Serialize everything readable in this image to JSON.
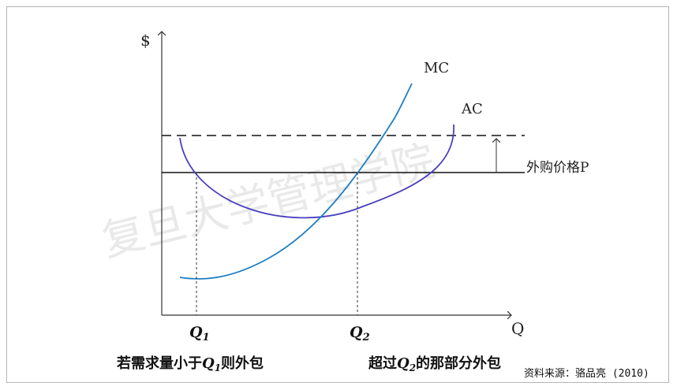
{
  "diagram": {
    "y_axis_label": "$",
    "x_axis_label": "Q",
    "mc_label": "MC",
    "ac_label": "AC",
    "price_label": "外购价格P",
    "q1_label": "Q",
    "q1_sub": "1",
    "q2_label": "Q",
    "q2_sub": "2",
    "caption_left_pre": "若需求量小于",
    "caption_left_post": "则外包",
    "caption_right_pre": "超过",
    "caption_right_post": "的那部分外包",
    "source": "资料来源：骆品亮 (2010)",
    "watermark": "复旦大学管理学院",
    "colors": {
      "mc_curve": "#1f7fc0",
      "ac_curve": "#4a3fbf",
      "axis": "#333333",
      "line": "#111111"
    }
  }
}
